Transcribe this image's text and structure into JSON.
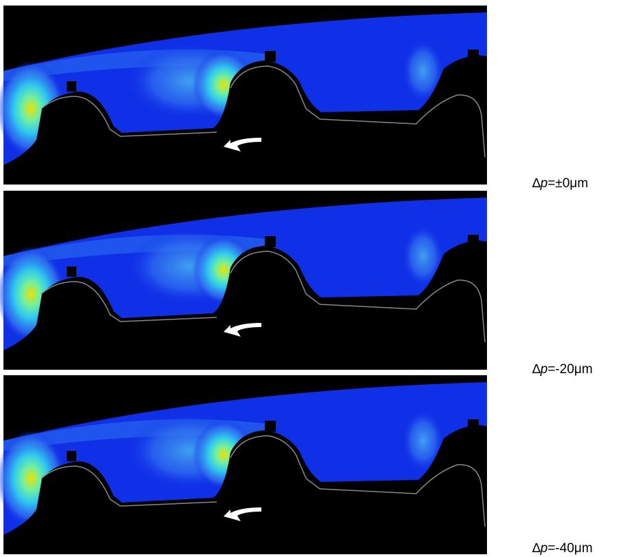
{
  "panels": [
    {
      "delta": "∆",
      "variable": "p",
      "value": "=±0μm"
    },
    {
      "delta": "∆",
      "variable": "p",
      "value": "=-20μm"
    },
    {
      "delta": "∆",
      "variable": "p",
      "value": "=-40μm"
    }
  ]
}
